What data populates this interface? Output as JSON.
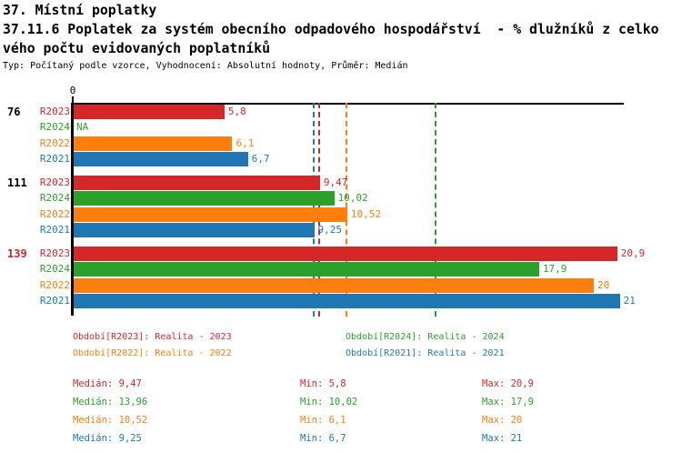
{
  "header": {
    "line1": "37. Místní poplatky",
    "line2": "37.11.6 Poplatek za systém obecního odpadového hospodářství  - % dlužníků z celko",
    "line3": "vého počtu evidovaných poplatníků",
    "meta": "Typ: Počítaný podle vzorce, Vyhodnocení: Absolutní hodnoty, Průměr: Medián"
  },
  "series_colors": {
    "R2023": "#d62728",
    "R2024": "#2ca02c",
    "R2022": "#ff7f0e",
    "R2021": "#1f77b4"
  },
  "chart_data": {
    "type": "bar",
    "orientation": "horizontal",
    "value_axis": {
      "tick_labels": [
        "0"
      ],
      "min": 0,
      "approx_max": 21.2,
      "grid": false
    },
    "series_order": [
      "R2023",
      "R2024",
      "R2022",
      "R2021"
    ],
    "groups": [
      {
        "label": "76",
        "label_color": "#000000",
        "bars": [
          {
            "series": "R2023",
            "value": 5.8,
            "display": "5,8"
          },
          {
            "series": "R2024",
            "value": null,
            "display": "NA"
          },
          {
            "series": "R2022",
            "value": 6.1,
            "display": "6,1"
          },
          {
            "series": "R2021",
            "value": 6.7,
            "display": "6,7"
          }
        ]
      },
      {
        "label": "111",
        "label_color": "#000000",
        "bars": [
          {
            "series": "R2023",
            "value": 9.47,
            "display": "9,47"
          },
          {
            "series": "R2024",
            "value": 10.02,
            "display": "10,02"
          },
          {
            "series": "R2022",
            "value": 10.52,
            "display": "10,52"
          },
          {
            "series": "R2021",
            "value": 9.25,
            "display": "9,25"
          }
        ]
      },
      {
        "label": "139",
        "label_color": "#d62728",
        "bars": [
          {
            "series": "R2023",
            "value": 20.9,
            "display": "20,9"
          },
          {
            "series": "R2024",
            "value": 17.9,
            "display": "17,9"
          },
          {
            "series": "R2022",
            "value": 20,
            "display": "20"
          },
          {
            "series": "R2021",
            "value": 21,
            "display": "21"
          }
        ]
      }
    ],
    "median_lines": [
      {
        "series": "R2023",
        "value": 9.47
      },
      {
        "series": "R2024",
        "value": 13.96
      },
      {
        "series": "R2022",
        "value": 10.52
      },
      {
        "series": "R2021",
        "value": 9.25
      }
    ]
  },
  "legend": {
    "items": [
      {
        "series": "R2023",
        "text": "Období[R2023]: Realita - 2023"
      },
      {
        "series": "R2024",
        "text": "Období[R2024]: Realita - 2024"
      },
      {
        "series": "R2022",
        "text": "Období[R2022]: Realita - 2022"
      },
      {
        "series": "R2021",
        "text": "Období[R2021]: Realita - 2021"
      }
    ]
  },
  "stats": {
    "labels": {
      "median": "Medián:",
      "min": "Min:",
      "max": "Max:"
    },
    "rows": [
      {
        "series": "R2023",
        "median": "9,47",
        "min": "5,8",
        "max": "20,9"
      },
      {
        "series": "R2024",
        "median": "13,96",
        "min": "10,02",
        "max": "17,9"
      },
      {
        "series": "R2022",
        "median": "10,52",
        "min": "6,1",
        "max": "20"
      },
      {
        "series": "R2021",
        "median": "9,25",
        "min": "6,7",
        "max": "21"
      }
    ]
  }
}
